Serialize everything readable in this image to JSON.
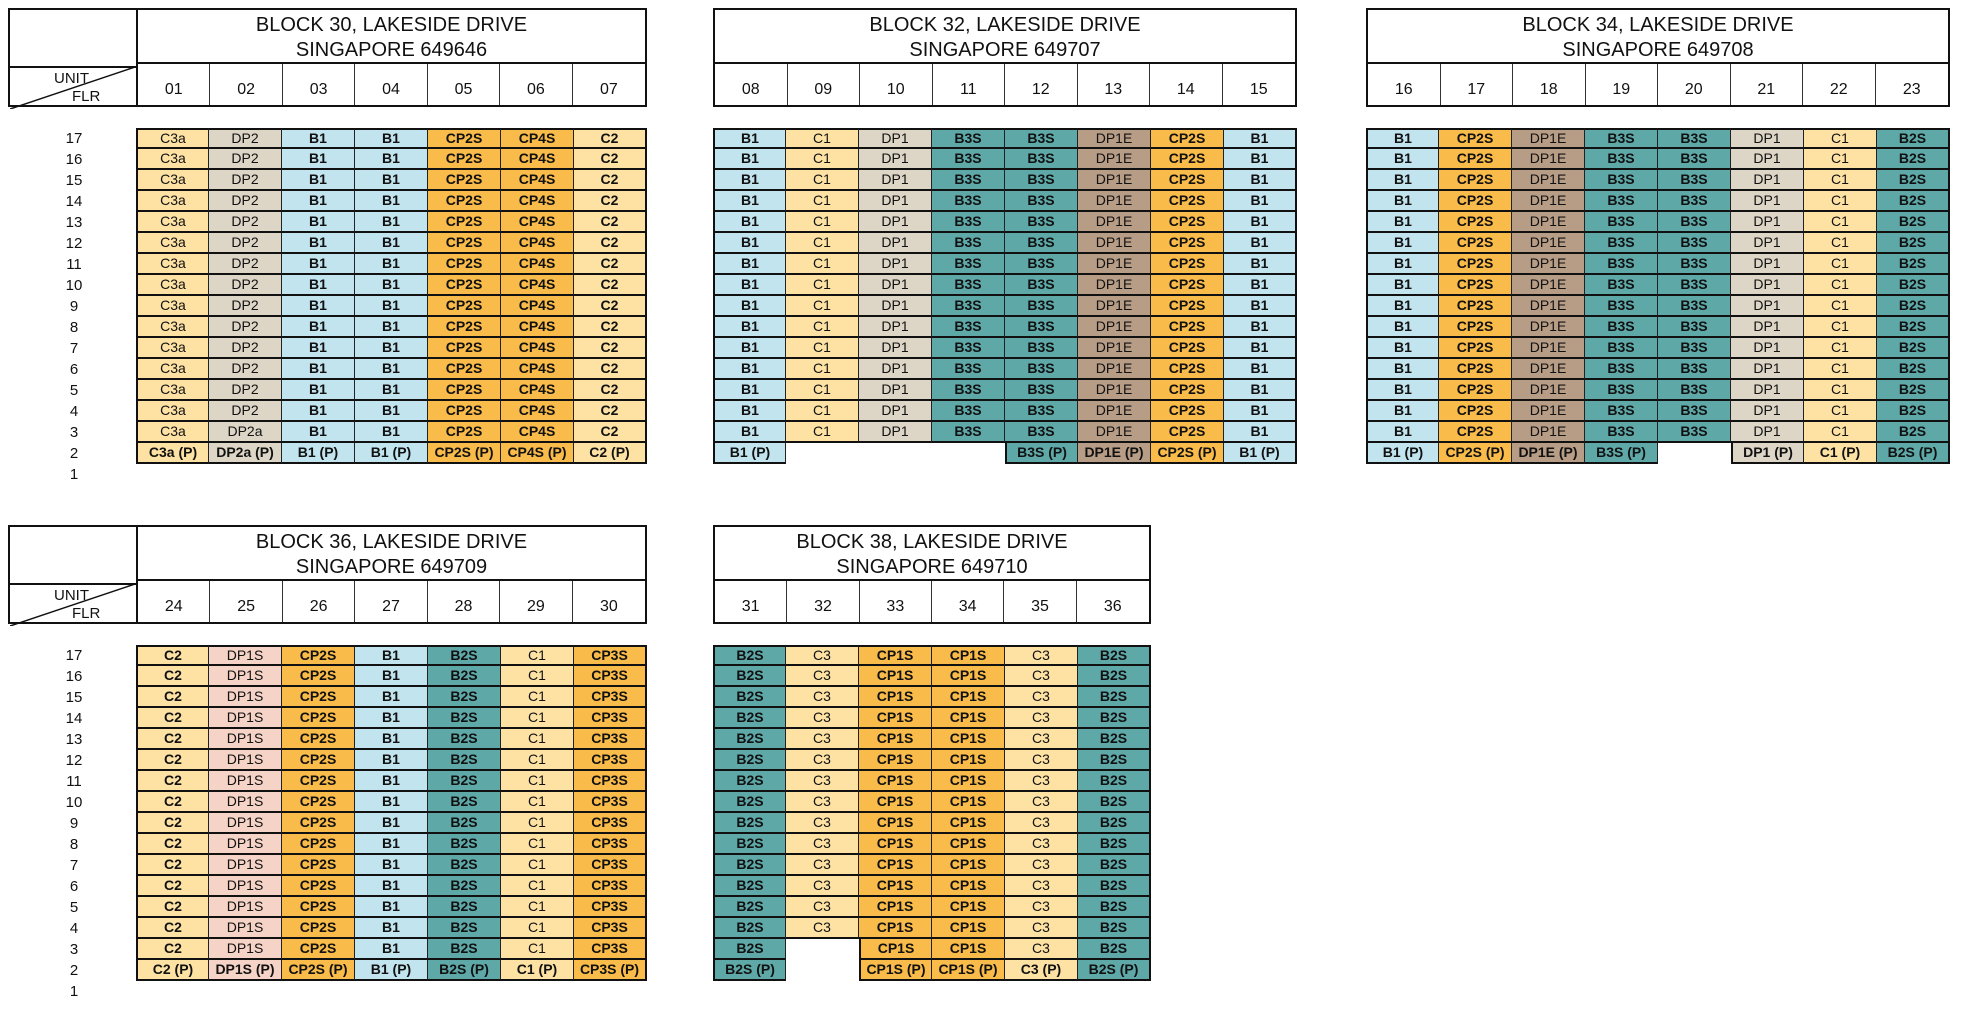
{
  "colors": {
    "C": "#fde2a4",
    "DP": "#ddd5c6",
    "B1": "#c2e4ee",
    "CP": "#f9bb4a",
    "B3S": "#5fa8a8",
    "DP1E": "#b79c86",
    "DP1S": "#f5d3c6"
  },
  "axis": {
    "unit": "UNIT",
    "floor": "FLR"
  },
  "floors": [
    "17",
    "16",
    "15",
    "14",
    "13",
    "12",
    "11",
    "10",
    "9",
    "8",
    "7",
    "6",
    "5",
    "4",
    "3",
    "2",
    "1"
  ],
  "blocks": [
    {
      "title": "BLOCK 30, LAKESIDE DRIVE",
      "postal": "SINGAPORE 649646",
      "units": [
        "01",
        "02",
        "03",
        "04",
        "05",
        "06",
        "07"
      ],
      "columns": [
        {
          "type": "C3a",
          "ground": "C3a (P)",
          "color": "C"
        },
        {
          "type": "DP2",
          "floor3": "DP2a",
          "ground": "DP2a (P)",
          "color": "DP"
        },
        {
          "type": "B1",
          "ground": "B1 (P)",
          "color": "B1"
        },
        {
          "type": "B1",
          "ground": "B1 (P)",
          "color": "B1"
        },
        {
          "type": "CP2S",
          "ground": "CP2S (P)",
          "color": "CP"
        },
        {
          "type": "CP4S",
          "ground": "CP4S (P)",
          "color": "CP"
        },
        {
          "type": "C2",
          "ground": "C2 (P)",
          "color": "C"
        }
      ]
    },
    {
      "title": "BLOCK 32, LAKESIDE DRIVE",
      "postal": "SINGAPORE 649707",
      "units": [
        "08",
        "09",
        "10",
        "11",
        "12",
        "13",
        "14",
        "15"
      ],
      "columns": [
        {
          "type": "B1",
          "ground": "B1 (P)",
          "color": "B1"
        },
        {
          "type": "C1",
          "ground": "",
          "color": "C"
        },
        {
          "type": "DP1",
          "ground": "",
          "color": "DP"
        },
        {
          "type": "B3S",
          "ground": "",
          "color": "B3S"
        },
        {
          "type": "B3S",
          "ground": "B3S (P)",
          "color": "B3S"
        },
        {
          "type": "DP1E",
          "ground": "DP1E (P)",
          "color": "DP1E"
        },
        {
          "type": "CP2S",
          "ground": "CP2S (P)",
          "color": "CP"
        },
        {
          "type": "B1",
          "ground": "B1 (P)",
          "color": "B1"
        }
      ]
    },
    {
      "title": "BLOCK 34, LAKESIDE DRIVE",
      "postal": "SINGAPORE 649708",
      "units": [
        "16",
        "17",
        "18",
        "19",
        "20",
        "21",
        "22",
        "23"
      ],
      "columns": [
        {
          "type": "B1",
          "ground": "B1 (P)",
          "color": "B1"
        },
        {
          "type": "CP2S",
          "ground": "CP2S (P)",
          "color": "CP"
        },
        {
          "type": "DP1E",
          "ground": "DP1E (P)",
          "color": "DP1E"
        },
        {
          "type": "B3S",
          "ground": "B3S (P)",
          "color": "B3S"
        },
        {
          "type": "B3S",
          "ground": "",
          "color": "B3S"
        },
        {
          "type": "DP1",
          "ground": "DP1 (P)",
          "color": "DP"
        },
        {
          "type": "C1",
          "ground": "C1 (P)",
          "color": "C"
        },
        {
          "type": "B2S",
          "ground": "B2S (P)",
          "color": "B3S"
        }
      ]
    },
    {
      "title": "BLOCK 36, LAKESIDE DRIVE",
      "postal": "SINGAPORE 649709",
      "units": [
        "24",
        "25",
        "26",
        "27",
        "28",
        "29",
        "30"
      ],
      "columns": [
        {
          "type": "C2",
          "ground": "C2 (P)",
          "color": "C"
        },
        {
          "type": "DP1S",
          "ground": "DP1S (P)",
          "color": "DP1S"
        },
        {
          "type": "CP2S",
          "ground": "CP2S (P)",
          "color": "CP"
        },
        {
          "type": "B1",
          "ground": "B1 (P)",
          "color": "B1"
        },
        {
          "type": "B2S",
          "ground": "B2S (P)",
          "color": "B3S"
        },
        {
          "type": "C1",
          "ground": "C1 (P)",
          "color": "C"
        },
        {
          "type": "CP3S",
          "ground": "CP3S (P)",
          "color": "CP"
        }
      ]
    },
    {
      "title": "BLOCK 38, LAKESIDE DRIVE",
      "postal": "SINGAPORE 649710",
      "units": [
        "31",
        "32",
        "33",
        "34",
        "35",
        "36"
      ],
      "columns": [
        {
          "type": "B2S",
          "ground": "B2S (P)",
          "color": "B3S"
        },
        {
          "type": "C3",
          "ground": "",
          "maxFloor": 4,
          "color": "C"
        },
        {
          "type": "CP1S",
          "ground": "CP1S (P)",
          "color": "CP"
        },
        {
          "type": "CP1S",
          "ground": "CP1S (P)",
          "color": "CP"
        },
        {
          "type": "C3",
          "ground": "C3 (P)",
          "color": "C"
        },
        {
          "type": "B2S",
          "ground": "B2S (P)",
          "color": "B3S"
        }
      ]
    }
  ]
}
